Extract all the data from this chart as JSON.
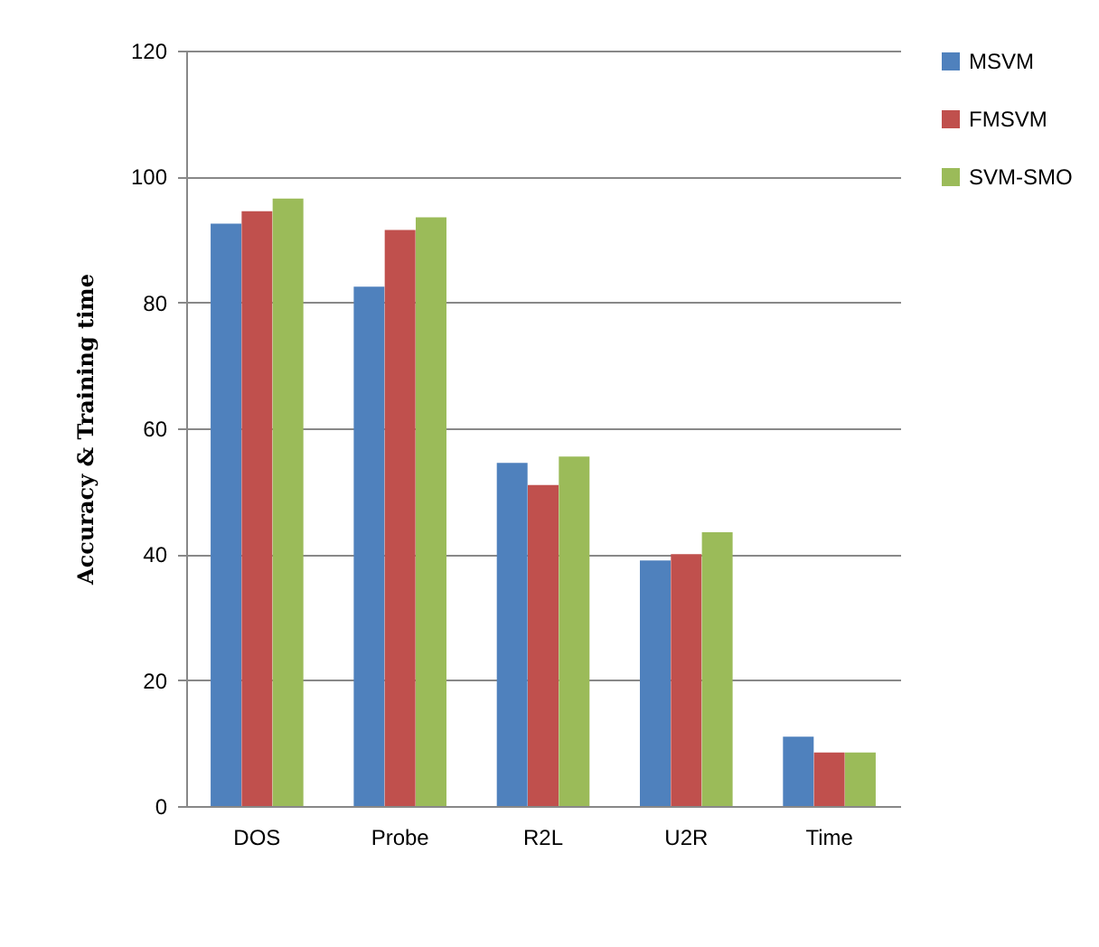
{
  "chart_data": {
    "type": "bar",
    "ylabel": "Accuracy & Training time",
    "categories": [
      "DOS",
      "Probe",
      "R2L",
      "U2R",
      "Time"
    ],
    "series": [
      {
        "name": "MSVM",
        "color": "#4f81bd",
        "values": [
          92.5,
          82.5,
          54.5,
          39,
          11
        ]
      },
      {
        "name": "FMSVM",
        "color": "#c0504d",
        "values": [
          94.5,
          91.5,
          51,
          40,
          8.5
        ]
      },
      {
        "name": "SVM-SMO",
        "color": "#9bbb59",
        "values": [
          96.5,
          93.5,
          55.5,
          43.5,
          8.5
        ]
      }
    ],
    "ylim": [
      0,
      120
    ],
    "yticks": [
      0,
      20,
      40,
      60,
      80,
      100,
      120
    ],
    "grid": "y",
    "legend": "right"
  }
}
